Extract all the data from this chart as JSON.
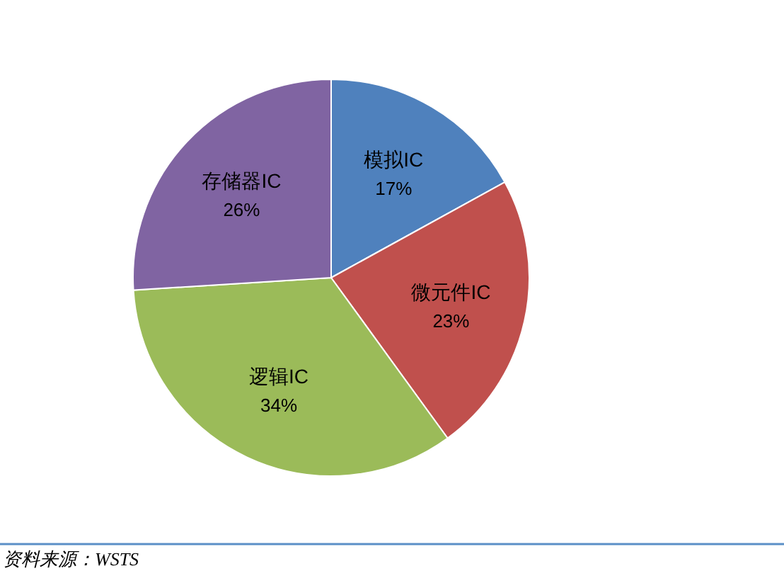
{
  "chart_data": {
    "type": "pie",
    "categories": [
      "模拟IC",
      "微元件IC",
      "逻辑IC",
      "存储器IC"
    ],
    "values": [
      17,
      23,
      34,
      26
    ],
    "colors": [
      "#4f81bd",
      "#c0504d",
      "#9bbb59",
      "#8064a2"
    ],
    "value_labels": [
      "17%",
      "23%",
      "34%",
      "26%"
    ],
    "annotations": [
      "资料来源：WSTS"
    ]
  }
}
